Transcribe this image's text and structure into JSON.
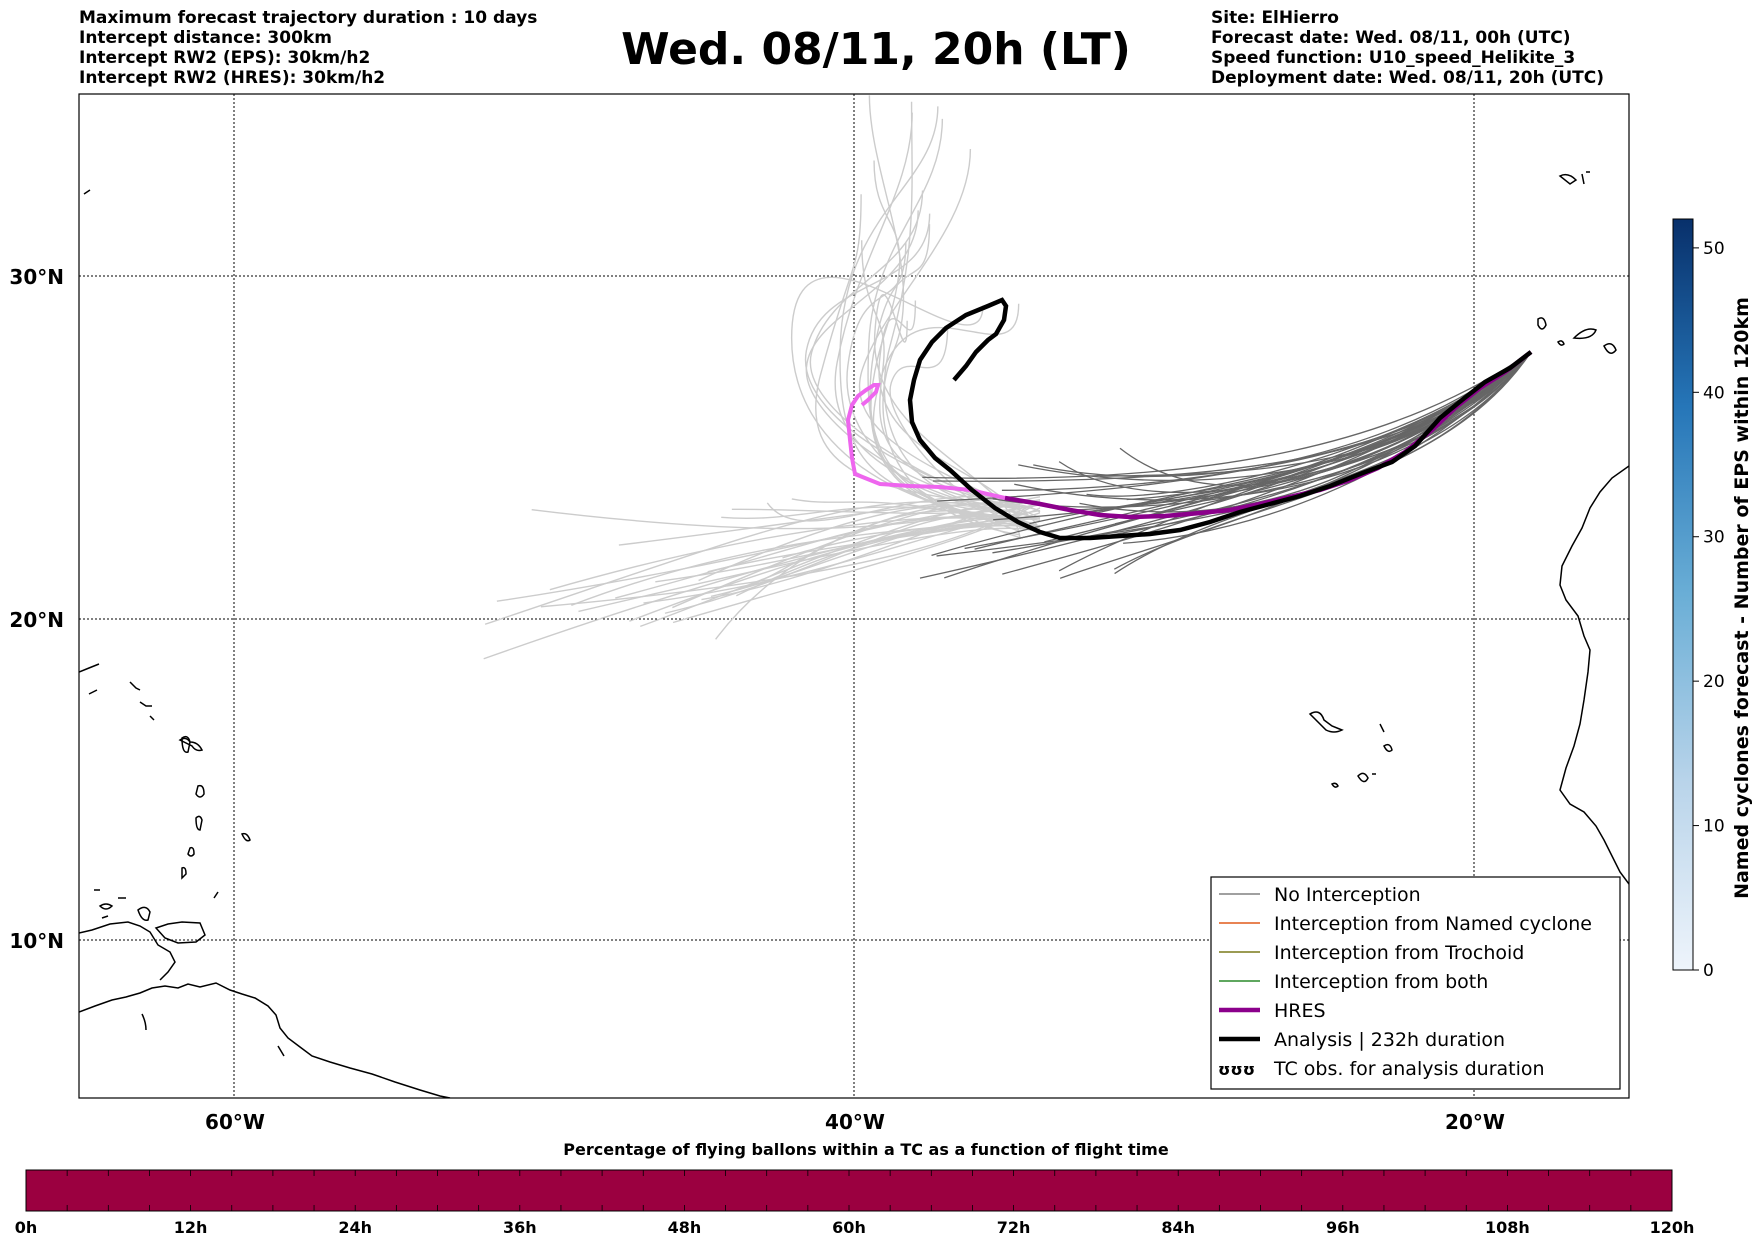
{
  "header": {
    "left": [
      "Maximum forecast trajectory duration : 10 days",
      "Intercept distance: 300km",
      "Intercept RW2 (EPS):  30km/h2",
      "Intercept RW2 (HRES): 30km/h2"
    ],
    "title": "Wed. 08/11, 20h (LT)",
    "right": [
      "Site: ElHierro",
      "Forecast date: Wed. 08/11, 00h (UTC)",
      "Speed function: U10_speed_Helikite_3",
      "Deployment date: Wed. 08/11, 20h (UTC)"
    ]
  },
  "map": {
    "lat_labels": [
      "30°N",
      "20°N",
      "10°N"
    ],
    "lon_labels": [
      "60°W",
      "40°W",
      "20°W"
    ],
    "extent": {
      "lon": [
        -65,
        -15
      ],
      "lat": [
        5.7,
        35
      ]
    }
  },
  "legend": {
    "items": [
      {
        "label": "No Interception",
        "color": "#808080",
        "style": "thin"
      },
      {
        "label": "Interception from Named cyclone",
        "color": "#e05a1a",
        "style": "thin"
      },
      {
        "label": "Interception from Trochoid",
        "color": "#7a7a1a",
        "style": "thin"
      },
      {
        "label": "Interception from both",
        "color": "#2a8a2a",
        "style": "thin"
      },
      {
        "label": "HRES",
        "color": "#8b008b",
        "style": "thick"
      },
      {
        "label": "Analysis | 232h duration",
        "color": "#000000",
        "style": "thick"
      },
      {
        "label": "TC obs. for analysis duration",
        "color": "#000000",
        "style": "symbol"
      }
    ],
    "symbol_text": "ʊʊʊ"
  },
  "colorbar_right": {
    "label": "Named cyclones forecast - Number of EPS within 120km",
    "ticks": [
      "0",
      "10",
      "20",
      "30",
      "40",
      "50"
    ],
    "max": 52
  },
  "colorbar_bottom": {
    "title": "Percentage of flying ballons within a TC as a function of flight time",
    "ticks": [
      "0h",
      "12h",
      "24h",
      "36h",
      "48h",
      "60h",
      "72h",
      "84h",
      "96h",
      "108h",
      "120h"
    ],
    "color": "#9b0040"
  },
  "colors": {
    "eps_light": "#cccccc",
    "eps_dark": "#666666",
    "hres": "#8b008b",
    "hres_early": "#ee66ee",
    "analysis": "#000000"
  }
}
